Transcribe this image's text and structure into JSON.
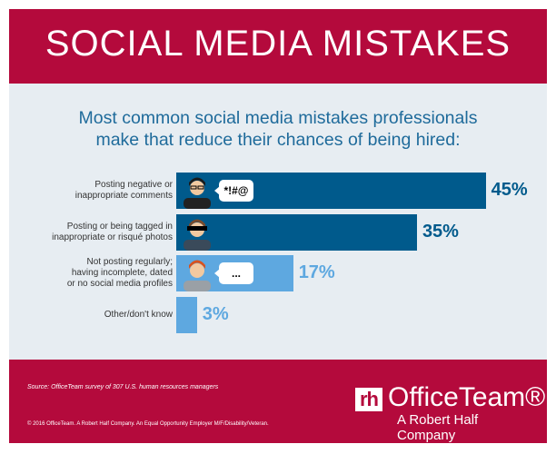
{
  "header": {
    "title": "SOCIAL MEDIA MISTAKES"
  },
  "subtitle": [
    "Most common social media mistakes professionals",
    "make that reduce their chances of being hired:"
  ],
  "chart_data": {
    "type": "bar",
    "orientation": "horizontal",
    "title": "Most common social media mistakes professionals make that reduce their chances of being hired:",
    "categories": [
      [
        "Posting negative or",
        "inappropriate comments"
      ],
      [
        "Posting or being tagged in",
        "inappropriate or risqué photos"
      ],
      [
        "Not posting regularly;",
        "having incomplete, dated",
        "or no social media profiles"
      ],
      [
        "Other/don't know"
      ]
    ],
    "values": [
      45,
      35,
      17,
      3
    ],
    "labels": [
      "45%",
      "35%",
      "17%",
      "3%"
    ],
    "unit": "%",
    "bubbles": [
      "*!#@",
      "",
      "...",
      ""
    ],
    "colors": [
      "#005a8c",
      "#005a8c",
      "#5ea8e0",
      "#5ea8e0"
    ],
    "grid": false
  },
  "footer": {
    "source": "Source: OfficeTeam survey of 307 U.S. human resources managers",
    "copyright": "© 2016 OfficeTeam. A Robert Half Company. An Equal Opportunity Employer M/F/Disability/Veteran.",
    "logo": {
      "mark": "rh",
      "name": "OfficeTeam®",
      "tagline": "A Robert Half Company"
    }
  }
}
